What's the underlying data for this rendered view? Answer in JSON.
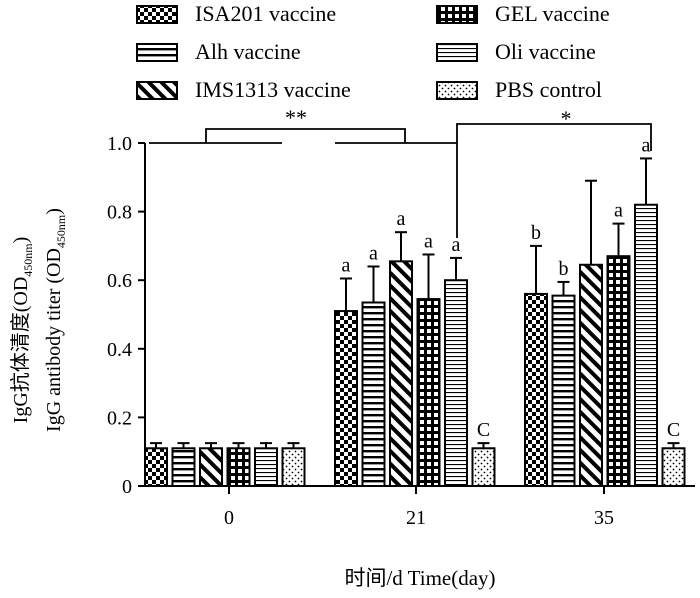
{
  "chart_data": {
    "type": "bar",
    "categories": [
      "0",
      "21",
      "35"
    ],
    "xlabel": "时间/d Time(day)",
    "ylabel_cn": "IgG抗体清度(OD",
    "ylabel_en": "IgG antibody titer (OD",
    "ylabel_sub": "450nm",
    "ylabel_close": ")",
    "ylim": [
      0,
      1.0
    ],
    "yticks": [
      "0",
      "0.2",
      "0.4",
      "0.6",
      "0.8",
      "1.0"
    ],
    "legend_placement": "top",
    "series": [
      {
        "name": "ISA201 vaccine",
        "pattern": "checker",
        "values": [
          0.11,
          0.51,
          0.56
        ],
        "errors": [
          0.015,
          0.095,
          0.14
        ],
        "labels": [
          "",
          "a",
          "b"
        ]
      },
      {
        "name": "Alh vaccine",
        "pattern": "hlines",
        "values": [
          0.11,
          0.535,
          0.555
        ],
        "errors": [
          0.015,
          0.105,
          0.04
        ],
        "labels": [
          "",
          "a",
          "b"
        ]
      },
      {
        "name": "IMS1313 vaccine",
        "pattern": "diag",
        "values": [
          0.11,
          0.655,
          0.645
        ],
        "errors": [
          0.015,
          0.085,
          0.245
        ],
        "labels": [
          "",
          "a",
          ""
        ]
      },
      {
        "name": "GEL vaccine",
        "pattern": "grid",
        "values": [
          0.11,
          0.545,
          0.67
        ],
        "errors": [
          0.015,
          0.13,
          0.095
        ],
        "labels": [
          "",
          "a",
          "a"
        ]
      },
      {
        "name": "Oli vaccine",
        "pattern": "thinlines",
        "values": [
          0.11,
          0.6,
          0.82
        ],
        "errors": [
          0.015,
          0.065,
          0.135
        ],
        "labels": [
          "",
          "a",
          "a"
        ]
      },
      {
        "name": "PBS control",
        "pattern": "dots",
        "values": [
          0.11,
          0.11,
          0.11
        ],
        "errors": [
          0.015,
          0.015,
          0.015
        ],
        "labels": [
          "",
          "C",
          "C"
        ]
      }
    ],
    "annotations": [
      {
        "text": "**",
        "between": [
          "0",
          "21"
        ]
      },
      {
        "text": "*",
        "between": [
          "21",
          "35"
        ]
      }
    ]
  }
}
